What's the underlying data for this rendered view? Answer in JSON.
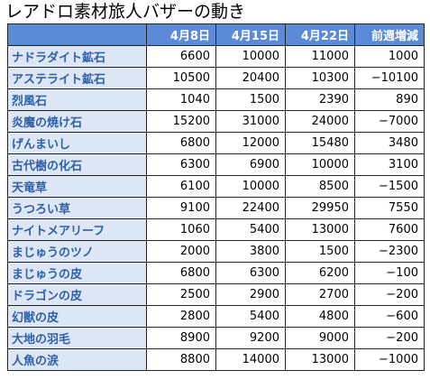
{
  "title": "レアドロ素材旅人バザーの動き",
  "columns": [
    "",
    "4月8日",
    "4月15日",
    "4月22日",
    "前週増減"
  ],
  "rows": [
    {
      "name": "ナドラダイト鉱石",
      "values": [
        "6600",
        "10000",
        "11000",
        "1000"
      ]
    },
    {
      "name": "アステライト鉱石",
      "values": [
        "10500",
        "20400",
        "10300",
        "−10100"
      ]
    },
    {
      "name": "烈風石",
      "values": [
        "1040",
        "1500",
        "2390",
        "890"
      ]
    },
    {
      "name": "炎魔の焼け石",
      "values": [
        "15200",
        "31000",
        "24000",
        "−7000"
      ]
    },
    {
      "name": "げんまいし",
      "values": [
        "6800",
        "12000",
        "15480",
        "3480"
      ]
    },
    {
      "name": "古代樹の化石",
      "values": [
        "6300",
        "6900",
        "10000",
        "3100"
      ]
    },
    {
      "name": "天竜草",
      "values": [
        "6100",
        "10000",
        "8500",
        "−1500"
      ]
    },
    {
      "name": "うつろい草",
      "values": [
        "9100",
        "22400",
        "29950",
        "7550"
      ]
    },
    {
      "name": "ナイトメアリーフ",
      "values": [
        "1060",
        "5400",
        "13000",
        "7600"
      ]
    },
    {
      "name": "まじゅうのツノ",
      "values": [
        "2000",
        "3800",
        "1500",
        "−2300"
      ]
    },
    {
      "name": "まじゅうの皮",
      "values": [
        "6800",
        "6300",
        "6200",
        "−100"
      ]
    },
    {
      "name": "ドラゴンの皮",
      "values": [
        "2500",
        "2900",
        "2700",
        "−200"
      ]
    },
    {
      "name": "幻獣の皮",
      "values": [
        "2800",
        "5400",
        "4800",
        "−600"
      ]
    },
    {
      "name": "大地の羽毛",
      "values": [
        "8900",
        "9200",
        "9000",
        "−200"
      ]
    },
    {
      "name": "人魚の涙",
      "values": [
        "8800",
        "14000",
        "13000",
        "−1000"
      ]
    }
  ],
  "colors": {
    "header_bg": "#5b8bd6",
    "rowhead_bg": "#dce6f4",
    "rowhead_text": "#2e5fa8"
  }
}
